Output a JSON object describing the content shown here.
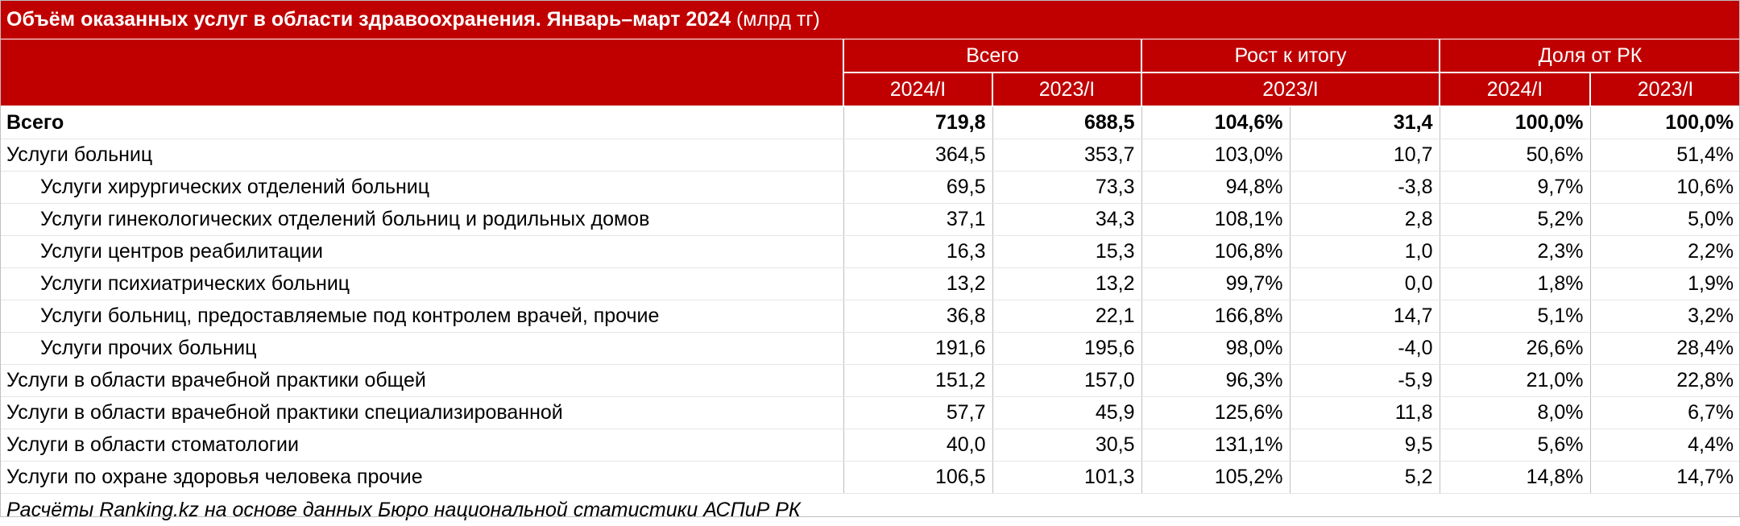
{
  "title": {
    "main": "Объём оказанных услуг в области здравоохранения. Январь–март 2024",
    "unit": "(млрд тг)"
  },
  "headers": {
    "group_total": "Всего",
    "group_growth": "Рост к итогу",
    "group_share": "Доля от РК",
    "total_2024": "2024/I",
    "total_2023": "2023/I",
    "growth_period": "2023/I",
    "share_2024": "2024/I",
    "share_2023": "2023/I"
  },
  "rows": [
    {
      "label": "Всего",
      "v2024": "719,8",
      "v2023": "688,5",
      "growth_pct": "104,6%",
      "growth_abs": "31,4",
      "share2024": "100,0%",
      "share2023": "100,0%"
    },
    {
      "label": "Услуги больниц",
      "v2024": "364,5",
      "v2023": "353,7",
      "growth_pct": "103,0%",
      "growth_abs": "10,7",
      "share2024": "50,6%",
      "share2023": "51,4%"
    },
    {
      "label": "Услуги хирургических отделений больниц",
      "v2024": "69,5",
      "v2023": "73,3",
      "growth_pct": "94,8%",
      "growth_abs": "-3,8",
      "share2024": "9,7%",
      "share2023": "10,6%"
    },
    {
      "label": "Услуги гинекологических отделений больниц и родильных домов",
      "v2024": "37,1",
      "v2023": "34,3",
      "growth_pct": "108,1%",
      "growth_abs": "2,8",
      "share2024": "5,2%",
      "share2023": "5,0%"
    },
    {
      "label": "Услуги центров реабилитации",
      "v2024": "16,3",
      "v2023": "15,3",
      "growth_pct": "106,8%",
      "growth_abs": "1,0",
      "share2024": "2,3%",
      "share2023": "2,2%"
    },
    {
      "label": "Услуги психиатрических больниц",
      "v2024": "13,2",
      "v2023": "13,2",
      "growth_pct": "99,7%",
      "growth_abs": "0,0",
      "share2024": "1,8%",
      "share2023": "1,9%"
    },
    {
      "label": "Услуги больниц, предоставляемые под контролем врачей, прочие",
      "v2024": "36,8",
      "v2023": "22,1",
      "growth_pct": "166,8%",
      "growth_abs": "14,7",
      "share2024": "5,1%",
      "share2023": "3,2%"
    },
    {
      "label": "Услуги прочих больниц",
      "v2024": "191,6",
      "v2023": "195,6",
      "growth_pct": "98,0%",
      "growth_abs": "-4,0",
      "share2024": "26,6%",
      "share2023": "28,4%"
    },
    {
      "label": "Услуги в области врачебной практики общей",
      "v2024": "151,2",
      "v2023": "157,0",
      "growth_pct": "96,3%",
      "growth_abs": "-5,9",
      "share2024": "21,0%",
      "share2023": "22,8%"
    },
    {
      "label": "Услуги в области врачебной практики специализированной",
      "v2024": "57,7",
      "v2023": "45,9",
      "growth_pct": "125,6%",
      "growth_abs": "11,8",
      "share2024": "8,0%",
      "share2023": "6,7%"
    },
    {
      "label": "Услуги в области стоматологии",
      "v2024": "40,0",
      "v2023": "30,5",
      "growth_pct": "131,1%",
      "growth_abs": "9,5",
      "share2024": "5,6%",
      "share2023": "4,4%"
    },
    {
      "label": "Услуги по охране здоровья человека прочие",
      "v2024": "106,5",
      "v2023": "101,3",
      "growth_pct": "105,2%",
      "growth_abs": "5,2",
      "share2024": "14,8%",
      "share2023": "14,7%"
    }
  ],
  "source": "Расчёты Ranking.kz на основе данных Бюро национальной статистики АСПиР РК",
  "colors": {
    "header_bg": "#c00000",
    "header_text": "#ffffff"
  }
}
